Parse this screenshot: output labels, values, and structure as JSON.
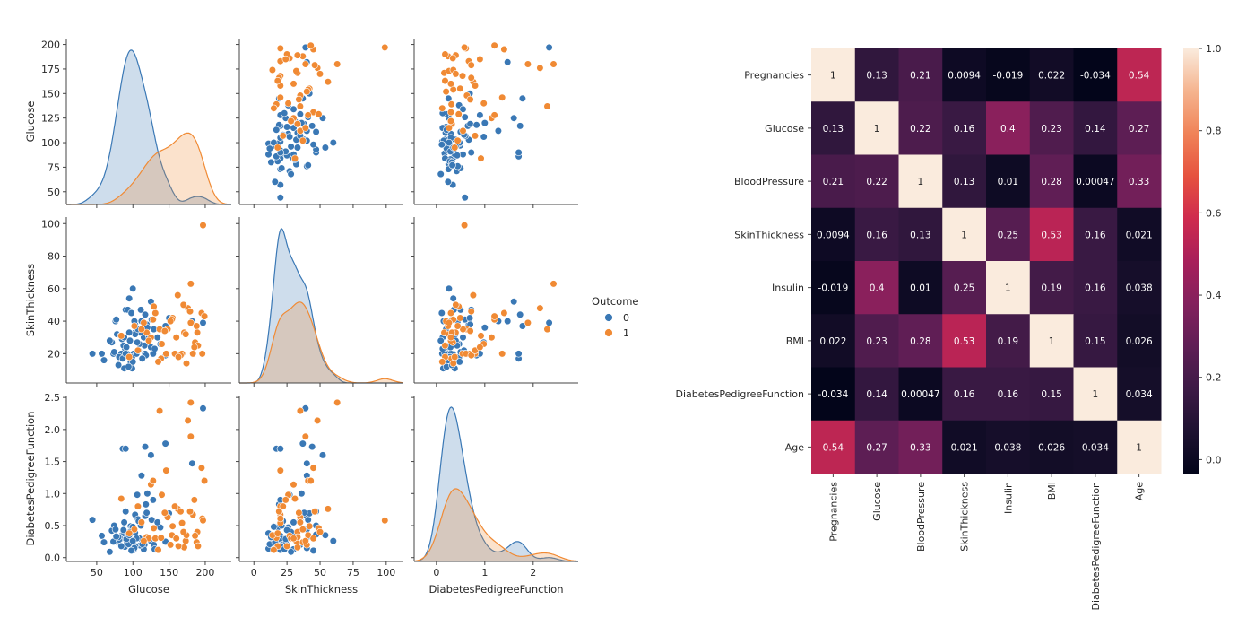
{
  "chart_data": [
    {
      "type": "scatter",
      "kind": "pairplot",
      "variables": [
        "Glucose",
        "SkinThickness",
        "DiabetesPedigreeFunction"
      ],
      "diagonal": "kde",
      "hue": "Outcome",
      "legend": {
        "title": "Outcome",
        "entries": [
          "0",
          "1"
        ],
        "placement": "right"
      },
      "colors": {
        "0": "#3a78b5",
        "1": "#f08a34"
      },
      "axes": {
        "Glucose": {
          "range": [
            8,
            236
          ],
          "ticks": [
            50,
            100,
            150,
            200
          ],
          "row_range": [
            37,
            206
          ],
          "row_ticks": [
            50,
            75,
            100,
            125,
            150,
            175,
            200
          ]
        },
        "SkinThickness": {
          "range": [
            -11,
            113
          ],
          "ticks": [
            0,
            25,
            50,
            75,
            100
          ],
          "row_range": [
            2,
            104
          ],
          "row_ticks": [
            20,
            40,
            60,
            80,
            100
          ]
        },
        "DiabetesPedigreeFunction": {
          "range": [
            -0.46,
            2.93
          ],
          "ticks": [
            0,
            1,
            2
          ],
          "row_range": [
            -0.06,
            2.53
          ],
          "row_ticks": [
            0.0,
            0.5,
            1.0,
            1.5,
            2.0,
            2.5
          ],
          "row_tick_labels": [
            "0.0",
            "0.5",
            "1.0",
            "1.5",
            "2.0",
            "2.5"
          ]
        }
      },
      "points_columns": [
        "Glucose",
        "SkinThickness",
        "DiabetesPedigreeFunction",
        "Outcome"
      ],
      "points": [
        [
          85,
          29,
          0.35,
          0
        ],
        [
          89,
          23,
          0.17,
          0
        ],
        [
          116,
          25,
          0.2,
          0
        ],
        [
          78,
          32,
          0.25,
          0
        ],
        [
          115,
          30,
          0.13,
          0
        ],
        [
          110,
          33,
          0.19,
          0
        ],
        [
          103,
          38,
          0.67,
          0
        ],
        [
          126,
          41,
          0.59,
          0
        ],
        [
          99,
          11,
          0.14,
          0
        ],
        [
          97,
          15,
          0.49,
          0
        ],
        [
          145,
          19,
          0.25,
          0
        ],
        [
          117,
          20,
          0.65,
          0
        ],
        [
          109,
          26,
          0.3,
          0
        ],
        [
          88,
          11,
          0.38,
          0
        ],
        [
          92,
          20,
          0.24,
          0
        ],
        [
          122,
          31,
          0.29,
          0
        ],
        [
          103,
          33,
          0.18,
          0
        ],
        [
          138,
          26,
          0.47,
          0
        ],
        [
          90,
          47,
          0.72,
          0
        ],
        [
          111,
          47,
          0.5,
          0
        ],
        [
          71,
          27,
          0.42,
          0
        ],
        [
          103,
          32,
          0.39,
          0
        ],
        [
          101,
          20,
          0.12,
          0
        ],
        [
          88,
          30,
          0.55,
          0
        ],
        [
          150,
          42,
          0.69,
          0
        ],
        [
          73,
          20,
          0.25,
          0
        ],
        [
          83,
          31,
          0.29,
          0
        ],
        [
          99,
          18,
          0.47,
          0
        ],
        [
          119,
          38,
          0.7,
          0
        ],
        [
          84,
          20,
          0.18,
          0
        ],
        [
          57,
          20,
          0.34,
          0
        ],
        [
          125,
          24,
          0.26,
          0
        ],
        [
          100,
          15,
          0.48,
          0
        ],
        [
          93,
          47,
          0.36,
          0
        ],
        [
          129,
          35,
          0.2,
          0
        ],
        [
          105,
          20,
          0.3,
          0
        ],
        [
          95,
          33,
          0.23,
          0
        ],
        [
          81,
          18,
          0.28,
          0
        ],
        [
          68,
          28,
          0.09,
          0
        ],
        [
          107,
          35,
          0.6,
          0
        ],
        [
          74,
          21,
          0.5,
          0
        ],
        [
          96,
          28,
          0.4,
          0
        ],
        [
          112,
          40,
          1.28,
          0
        ],
        [
          87,
          25,
          0.43,
          0
        ],
        [
          118,
          19,
          0.83,
          0
        ],
        [
          94,
          12,
          0.21,
          0
        ],
        [
          134,
          30,
          0.55,
          0
        ],
        [
          120,
          36,
          1.0,
          0
        ],
        [
          91,
          24,
          0.29,
          0
        ],
        [
          80,
          13,
          0.32,
          0
        ],
        [
          102,
          40,
          0.15,
          0
        ],
        [
          108,
          22,
          0.57,
          0
        ],
        [
          76,
          40,
          0.44,
          0
        ],
        [
          106,
          27,
          0.98,
          0
        ],
        [
          113,
          17,
          0.21,
          0
        ],
        [
          44,
          20,
          0.59,
          0
        ],
        [
          100,
          60,
          0.26,
          0
        ],
        [
          197,
          39,
          2.33,
          0
        ],
        [
          145,
          37,
          1.78,
          0
        ],
        [
          86,
          17,
          1.7,
          0
        ],
        [
          90,
          20,
          1.7,
          0
        ],
        [
          117,
          44,
          1.73,
          0
        ],
        [
          125,
          52,
          1.6,
          0
        ],
        [
          95,
          54,
          0.35,
          0
        ],
        [
          182,
          40,
          1.47,
          0
        ],
        [
          128,
          20,
          0.9,
          0
        ],
        [
          77,
          41,
          0.33,
          0
        ],
        [
          60,
          16,
          0.24,
          0
        ],
        [
          130,
          23,
          0.13,
          0
        ],
        [
          98,
          45,
          0.11,
          0
        ],
        [
          148,
          35,
          0.63,
          1
        ],
        [
          183,
          20,
          0.67,
          1
        ],
        [
          137,
          35,
          2.29,
          1
        ],
        [
          168,
          20,
          0.54,
          1
        ],
        [
          171,
          33,
          0.16,
          1
        ],
        [
          176,
          48,
          2.14,
          1
        ],
        [
          180,
          63,
          2.42,
          1
        ],
        [
          180,
          39,
          1.89,
          1
        ],
        [
          196,
          20,
          0.61,
          1
        ],
        [
          188,
          37,
          0.24,
          1
        ],
        [
          197,
          99,
          0.58,
          1
        ],
        [
          162,
          56,
          0.76,
          1
        ],
        [
          155,
          42,
          0.49,
          1
        ],
        [
          140,
          26,
          0.98,
          1
        ],
        [
          125,
          30,
          1.14,
          1
        ],
        [
          146,
          20,
          1.36,
          1
        ],
        [
          158,
          20,
          0.8,
          1
        ],
        [
          173,
          32,
          0.26,
          1
        ],
        [
          189,
          33,
          0.4,
          1
        ],
        [
          166,
          19,
          0.72,
          1
        ],
        [
          154,
          41,
          0.35,
          1
        ],
        [
          131,
          45,
          0.3,
          1
        ],
        [
          152,
          40,
          0.2,
          1
        ],
        [
          179,
          46,
          0.72,
          1
        ],
        [
          128,
          41,
          1.2,
          1
        ],
        [
          119,
          33,
          0.32,
          1
        ],
        [
          139,
          17,
          0.31,
          1
        ],
        [
          163,
          18,
          0.18,
          1
        ],
        [
          186,
          27,
          0.34,
          1
        ],
        [
          195,
          45,
          1.4,
          1
        ],
        [
          112,
          35,
          0.55,
          1
        ],
        [
          102,
          37,
          0.44,
          1
        ],
        [
          129,
          49,
          0.46,
          1
        ],
        [
          122,
          28,
          0.3,
          1
        ],
        [
          144,
          34,
          0.7,
          1
        ],
        [
          190,
          25,
          0.18,
          1
        ],
        [
          174,
          14,
          0.35,
          1
        ],
        [
          107,
          22,
          0.8,
          1
        ],
        [
          160,
          30,
          0.3,
          1
        ],
        [
          185,
          24,
          0.9,
          1
        ],
        [
          135,
          15,
          0.12,
          1
        ],
        [
          199,
          43,
          1.2,
          1
        ],
        [
          95,
          18,
          0.38,
          1
        ],
        [
          84,
          31,
          0.92,
          1
        ],
        [
          115,
          39,
          0.26,
          1
        ],
        [
          170,
          50,
          0.4,
          1
        ]
      ]
    },
    {
      "type": "heatmap",
      "labels": [
        "Pregnancies",
        "Glucose",
        "BloodPressure",
        "SkinThickness",
        "Insulin",
        "BMI",
        "DiabetesPedigreeFunction",
        "Age"
      ],
      "values": [
        [
          "1",
          "0.13",
          "0.21",
          "0.0094",
          "-0.019",
          "0.022",
          "-0.034",
          "0.54"
        ],
        [
          "0.13",
          "1",
          "0.22",
          "0.16",
          "0.4",
          "0.23",
          "0.14",
          "0.27"
        ],
        [
          "0.21",
          "0.22",
          "1",
          "0.13",
          "0.01",
          "0.28",
          "0.00047",
          "0.33"
        ],
        [
          "0.0094",
          "0.16",
          "0.13",
          "1",
          "0.25",
          "0.53",
          "0.16",
          "0.021"
        ],
        [
          "-0.019",
          "0.4",
          "0.01",
          "0.25",
          "1",
          "0.19",
          "0.16",
          "0.038"
        ],
        [
          "0.022",
          "0.23",
          "0.28",
          "0.53",
          "0.19",
          "1",
          "0.15",
          "0.026"
        ],
        [
          "-0.034",
          "0.14",
          "0.00047",
          "0.16",
          "0.16",
          "0.15",
          "1",
          "0.034"
        ],
        [
          "0.54",
          "0.27",
          "0.33",
          "0.021",
          "0.038",
          "0.026",
          "0.034",
          "1"
        ]
      ],
      "annotated": true,
      "colormap": "rocket",
      "vrange": [
        -0.034,
        1.0
      ],
      "colorbar": {
        "ticks": [
          0.0,
          0.2,
          0.4,
          0.6,
          0.8,
          1.0
        ],
        "tick_labels": [
          "0.0",
          "0.2",
          "0.4",
          "0.6",
          "0.8",
          "1.0"
        ],
        "placement": "right"
      }
    }
  ]
}
